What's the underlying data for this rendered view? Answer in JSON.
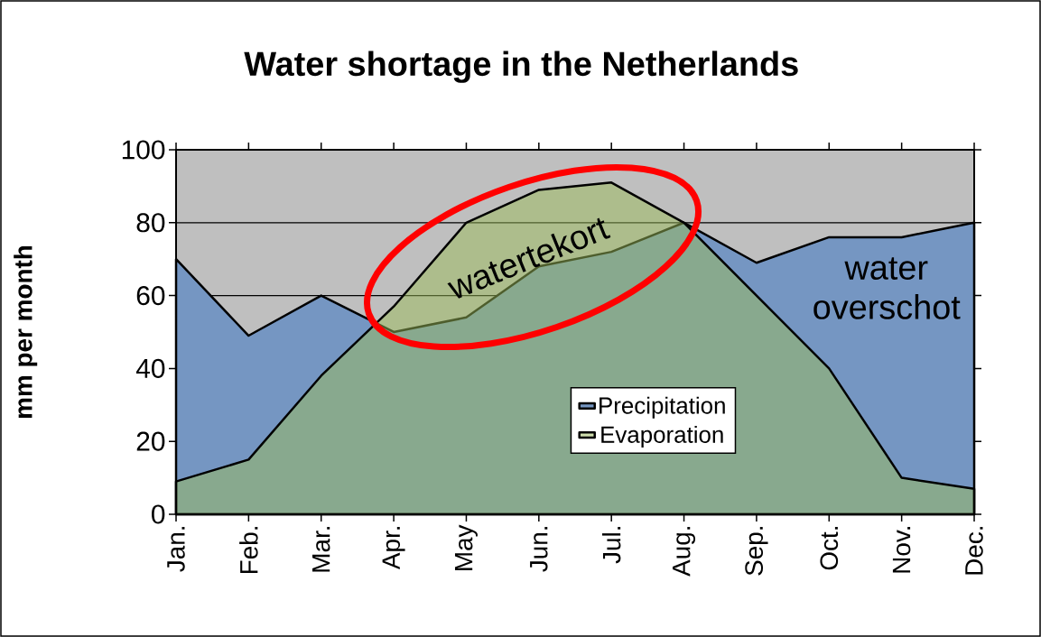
{
  "chart_data": {
    "type": "area",
    "title": "Water shortage in the Netherlands",
    "ylabel": "mm per month",
    "categories": [
      "Jan.",
      "Feb.",
      "Mar.",
      "Apr.",
      "May",
      "Jun.",
      "Jul.",
      "Aug.",
      "Sep.",
      "Oct.",
      "Nov.",
      "Dec."
    ],
    "series": [
      {
        "name": "Precipitation",
        "color": "#7596c2",
        "values": [
          70,
          49,
          60,
          50,
          54,
          68,
          72,
          80,
          69,
          76,
          76,
          80
        ]
      },
      {
        "name": "Evaporation",
        "color": "#9bbb59",
        "values": [
          9,
          15,
          38,
          57,
          80,
          89,
          91,
          80,
          60,
          40,
          10,
          7
        ]
      }
    ],
    "ylim": [
      0,
      100
    ],
    "yticks": [
      0,
      20,
      40,
      60,
      80,
      100
    ],
    "grid": "y",
    "legend": "bottom right",
    "annotations": [
      "watertekort",
      "water overschot"
    ]
  }
}
